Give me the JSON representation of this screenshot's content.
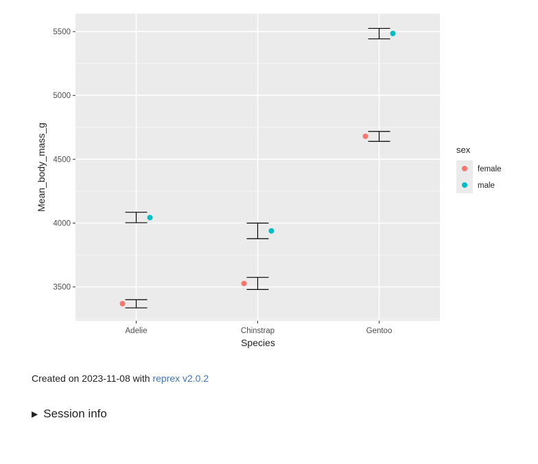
{
  "chart_data": {
    "type": "scatter",
    "xlabel": "Species",
    "ylabel": "Mean_body_mass_g",
    "categories": [
      "Adelie",
      "Chinstrap",
      "Gentoo"
    ],
    "ylim": [
      3235,
      5640
    ],
    "yticks": [
      3500,
      4000,
      4500,
      5000,
      5500
    ],
    "grid": true,
    "legend": {
      "title": "sex",
      "position": "right"
    },
    "series": [
      {
        "name": "female",
        "color": "#F8766D",
        "values": [
          3369,
          3527,
          4680
        ],
        "error_low": [
          3336,
          3480,
          4640
        ],
        "error_high": [
          3400,
          3575,
          4718
        ]
      },
      {
        "name": "male",
        "color": "#00BFC4",
        "values": [
          4043,
          3939,
          5485
        ],
        "error_low": [
          4003,
          3878,
          5443
        ],
        "error_high": [
          4085,
          4000,
          5525
        ]
      }
    ]
  },
  "caption": {
    "prefix": "Created on 2023-11-08 with ",
    "link_text": "reprex v2.0.2"
  },
  "session": {
    "label": "Session info"
  }
}
